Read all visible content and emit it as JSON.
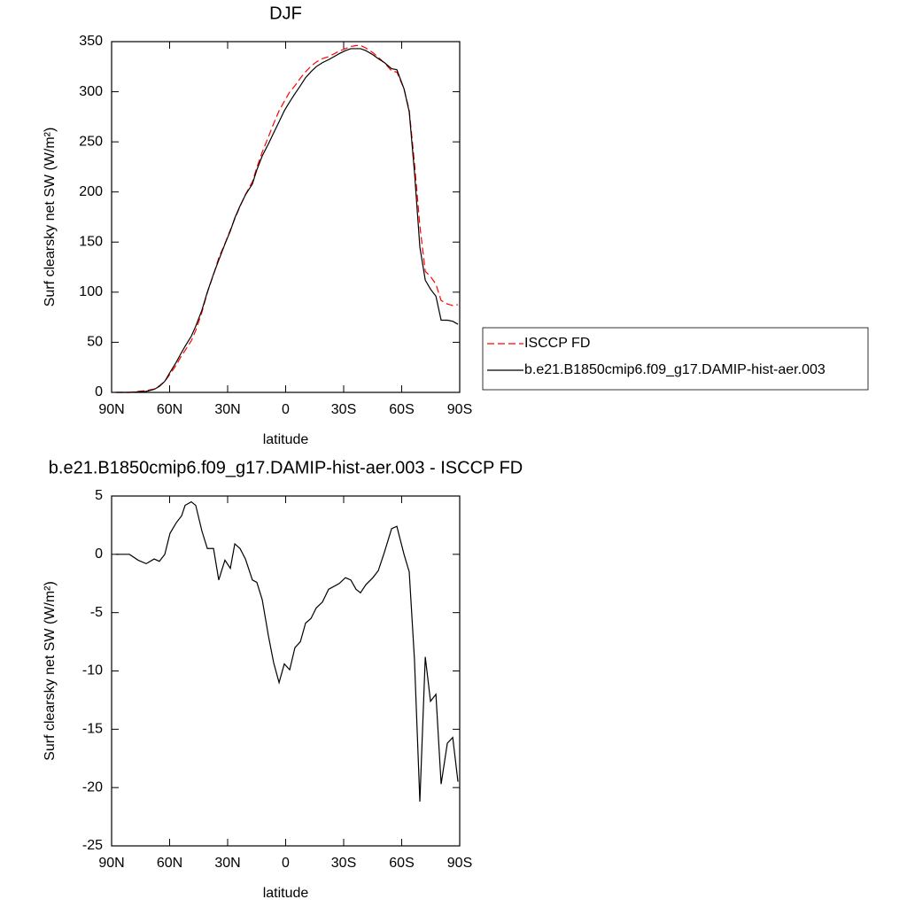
{
  "chart_data": [
    {
      "type": "line",
      "title": "DJF",
      "x_label": "latitude",
      "y_label": "Surf clearsky net SW (W/m²)",
      "x": [
        87.7,
        80.8,
        76.3,
        72.1,
        68,
        65.3,
        62.5,
        59.8,
        56.6,
        53.8,
        52,
        48.8,
        46.5,
        43.3,
        40.5,
        37.3,
        34.6,
        31.4,
        28.6,
        26.3,
        23.6,
        20.8,
        17.2,
        14.9,
        12.1,
        8.9,
        6.2,
        3.4,
        0.7,
        -2.1,
        -4.8,
        -7.6,
        -10.3,
        -13.1,
        -15.8,
        -19,
        -22.2,
        -27.7,
        -30.9,
        -33.7,
        -36.4,
        -38.7,
        -41.5,
        -45.1,
        -47.9,
        -51.1,
        -54.8,
        -57.5,
        -61.2,
        -63.9,
        -66.6,
        -69.4,
        -72.2,
        -74.9,
        -77.7,
        -80.4,
        -83.6,
        -86.4,
        -89.1
      ],
      "series": [
        {
          "name": "ISCCP FD",
          "color": "#ff0000",
          "line_style": "dashed",
          "values": [
            0,
            0,
            1,
            1.8,
            3.4,
            6.6,
            11,
            18.2,
            27.3,
            36.7,
            41.8,
            51.5,
            61.8,
            80,
            99.5,
            117.5,
            134.2,
            148.5,
            162.2,
            173.1,
            185.5,
            197.4,
            210.2,
            224.4,
            239.9,
            255,
            268.3,
            281,
            290.4,
            299.9,
            306,
            313.5,
            319.9,
            325.5,
            329.6,
            333.1,
            335,
            340.5,
            343,
            345.2,
            346,
            346.3,
            343.6,
            339,
            334.4,
            328.8,
            320.8,
            319.6,
            303,
            281.5,
            229,
            166.2,
            120.8,
            115.6,
            108,
            91.7,
            88.2,
            86.7,
            87.5
          ]
        },
        {
          "name": "b.e21.B1850cmip6.f09_g17.DAMIP-hist-aer.003",
          "color": "#000000",
          "line_style": "solid",
          "values": [
            0,
            0,
            0.5,
            1,
            3,
            6,
            11,
            20,
            30,
            40,
            46,
            56,
            66,
            82,
            100,
            118,
            132,
            148,
            161,
            174,
            186,
            197,
            208,
            222,
            236,
            248,
            259,
            270,
            281,
            290,
            298,
            306,
            314,
            320,
            325,
            329,
            332,
            338,
            341,
            343,
            343,
            343,
            341,
            337,
            333,
            329,
            323,
            322,
            303,
            280,
            220,
            145,
            112,
            103,
            96,
            72,
            72,
            71,
            68
          ]
        }
      ],
      "xlim": [
        90,
        -90
      ],
      "xticks": [
        {
          "value": 90,
          "label": "90N"
        },
        {
          "value": 60,
          "label": "60N"
        },
        {
          "value": 30,
          "label": "30N"
        },
        0,
        {
          "value": -30,
          "label": "30S"
        },
        {
          "value": -60,
          "label": "60S"
        },
        {
          "value": -90,
          "label": "90S"
        }
      ],
      "ylim": [
        0,
        350
      ],
      "yticks": [
        0,
        50,
        100,
        150,
        200,
        250,
        300,
        350
      ],
      "legend": "right"
    },
    {
      "type": "line",
      "title": "b.e21.B1850cmip6.f09_g17.DAMIP-hist-aer.003 - ISCCP FD",
      "x_label": "latitude",
      "y_label": "Surf clearsky net SW (W/m²)",
      "x": [
        87.7,
        80.8,
        76.3,
        72.1,
        68,
        65.3,
        62.5,
        59.8,
        56.6,
        53.8,
        52,
        48.8,
        46.5,
        43.3,
        40.5,
        37.3,
        34.6,
        31.4,
        28.6,
        26.3,
        23.6,
        20.8,
        17.2,
        14.9,
        12.1,
        8.9,
        6.2,
        3.4,
        0.7,
        -2.1,
        -4.8,
        -7.6,
        -10.3,
        -13.1,
        -15.8,
        -19,
        -22.2,
        -27.7,
        -30.9,
        -33.7,
        -36.4,
        -38.7,
        -41.5,
        -45.1,
        -47.9,
        -51.1,
        -54.8,
        -57.5,
        -61.2,
        -63.9,
        -66.6,
        -69.4,
        -72.2,
        -74.9,
        -77.7,
        -80.4,
        -83.6,
        -86.4,
        -89.1
      ],
      "series": [
        {
          "color": "#000000",
          "line_style": "solid",
          "values": [
            0,
            0,
            -0.5,
            -0.8,
            -0.4,
            -0.6,
            0,
            1.8,
            2.7,
            3.3,
            4.2,
            4.5,
            4.2,
            2,
            0.5,
            0.5,
            -2.2,
            -0.5,
            -1.2,
            0.9,
            0.5,
            -0.4,
            -2.2,
            -2.4,
            -3.9,
            -7,
            -9.3,
            -11,
            -9.4,
            -9.9,
            -8,
            -7.5,
            -5.9,
            -5.5,
            -4.6,
            -4.1,
            -3,
            -2.5,
            -2,
            -2.2,
            -3,
            -3.3,
            -2.6,
            -2,
            -1.4,
            0.2,
            2.2,
            2.4,
            0,
            -1.5,
            -9,
            -21.2,
            -8.8,
            -12.6,
            -12,
            -19.7,
            -16.2,
            -15.7,
            -19.5
          ]
        }
      ],
      "xlim": [
        90,
        -90
      ],
      "xticks": [
        {
          "value": 90,
          "label": "90N"
        },
        {
          "value": 60,
          "label": "60N"
        },
        {
          "value": 30,
          "label": "30N"
        },
        0,
        {
          "value": -30,
          "label": "30S"
        },
        {
          "value": -60,
          "label": "60S"
        },
        {
          "value": -90,
          "label": "90S"
        }
      ],
      "ylim": [
        -25,
        5
      ],
      "yticks": [
        5,
        0,
        -5,
        -10,
        -15,
        -20,
        -25
      ]
    }
  ]
}
